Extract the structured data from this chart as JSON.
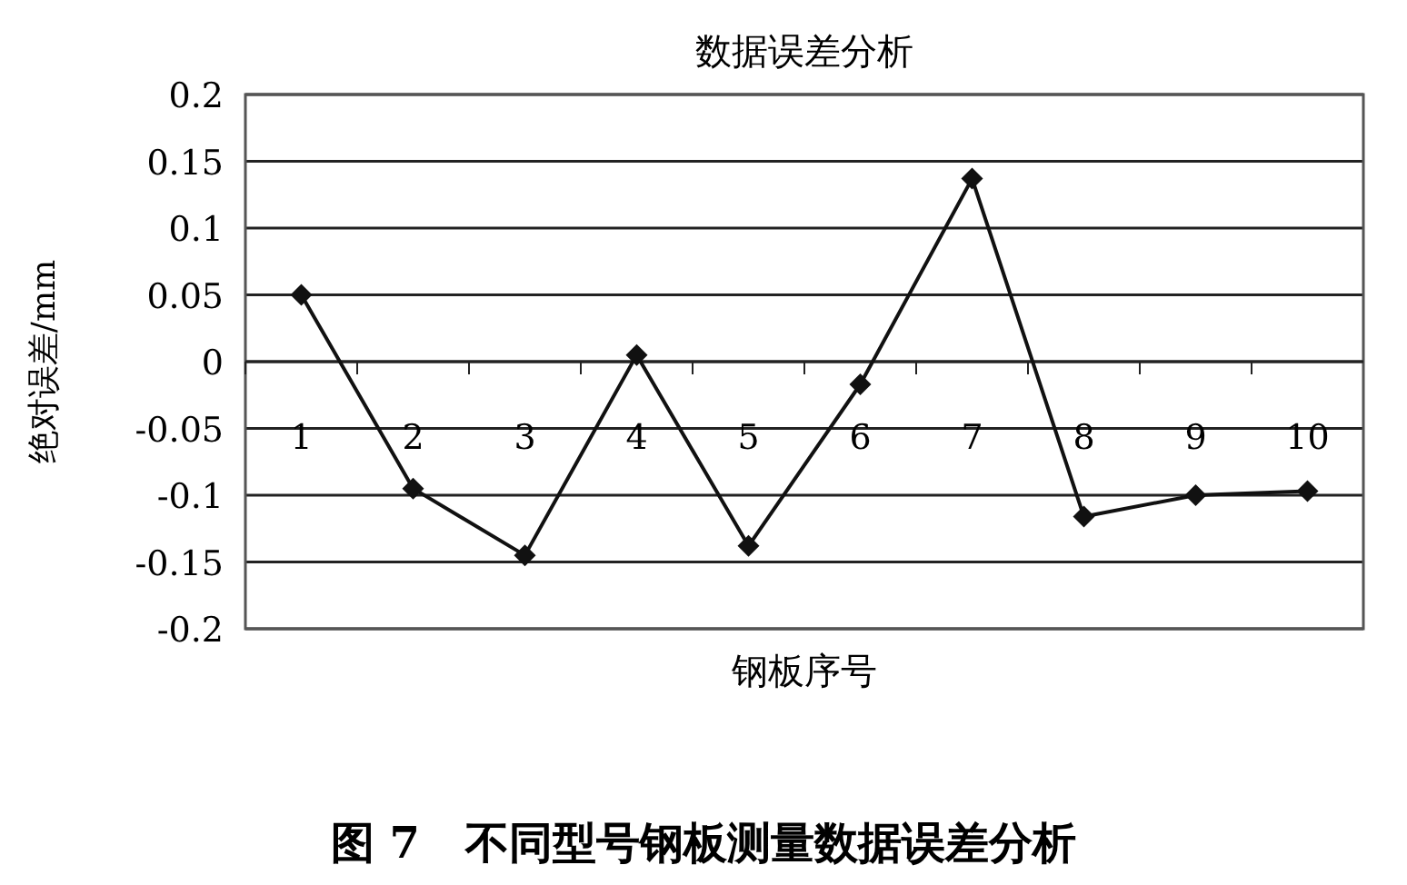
{
  "chart_data": {
    "type": "line",
    "title": "数据误差分析",
    "xlabel": "钢板序号",
    "ylabel": "绝对误差/mm",
    "annotations": [
      "图 7   不同型号钢板测量数据误差分析"
    ],
    "categories": [
      "1",
      "2",
      "3",
      "4",
      "5",
      "6",
      "7",
      "8",
      "9",
      "10"
    ],
    "series": [
      {
        "color": "#111111",
        "values": [
          0.05,
          -0.095,
          -0.145,
          0.005,
          -0.138,
          -0.017,
          0.137,
          -0.116,
          -0.1,
          -0.097
        ]
      }
    ],
    "ylim": [
      -0.2,
      0.2
    ],
    "yticks": [
      -0.2,
      -0.15,
      -0.1,
      -0.05,
      0,
      0.05,
      0.1,
      0.15,
      0.2
    ],
    "grid": "y",
    "marker": "diamond",
    "line_style": "solid"
  }
}
